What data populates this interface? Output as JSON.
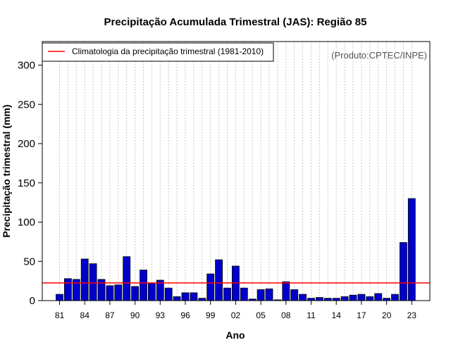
{
  "chart_data": {
    "type": "bar",
    "title": "Precipitação Acumulada Trimestral (JAS): Região 85",
    "xlabel": "Ano",
    "ylabel": "Precipitação trimestral (mm)",
    "credit": "(Produto:CPTEC/INPE)",
    "ylim": [
      0,
      330
    ],
    "yticks": [
      0,
      50,
      100,
      150,
      200,
      250,
      300
    ],
    "xtick_labels": [
      "81",
      "84",
      "87",
      "90",
      "93",
      "96",
      "99",
      "02",
      "05",
      "08",
      "11",
      "14",
      "17",
      "20",
      "23"
    ],
    "categories": [
      "1981",
      "1982",
      "1983",
      "1984",
      "1985",
      "1986",
      "1987",
      "1988",
      "1989",
      "1990",
      "1991",
      "1992",
      "1993",
      "1994",
      "1995",
      "1996",
      "1997",
      "1998",
      "1999",
      "2000",
      "2001",
      "2002",
      "2003",
      "2004",
      "2005",
      "2006",
      "2007",
      "2008",
      "2009",
      "2010",
      "2011",
      "2012",
      "2013",
      "2014",
      "2015",
      "2016",
      "2017",
      "2018",
      "2019",
      "2020",
      "2021",
      "2022",
      "2023"
    ],
    "values": [
      8,
      28,
      27,
      53,
      47,
      27,
      19,
      20,
      56,
      18,
      39,
      22,
      26,
      16,
      5,
      10,
      10,
      3,
      34,
      52,
      16,
      44,
      16,
      2,
      14,
      15,
      1,
      24,
      14,
      8,
      3,
      4,
      3,
      3,
      5,
      7,
      8,
      5,
      9,
      3,
      8,
      74,
      130
    ],
    "bar_color": "#0000cc",
    "climatology": {
      "label": "Climatologia da precipitação trimestral (1981-2010)",
      "value": 22.5,
      "color": "#ff0000"
    },
    "grid": "vertical dotted",
    "legend_position": "top-left"
  }
}
